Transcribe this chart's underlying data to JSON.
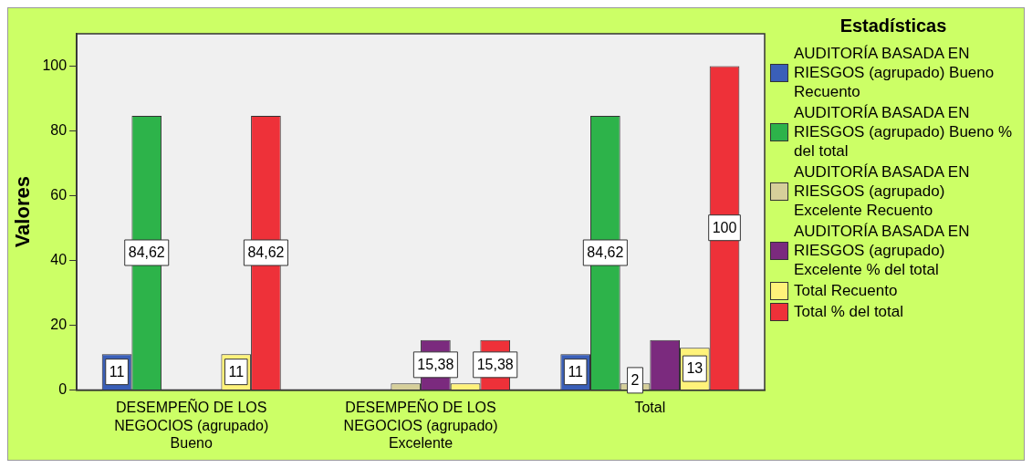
{
  "chart_data": {
    "type": "bar",
    "ylabel": "Valores",
    "legend_title": "Estadísticas",
    "legend": "right",
    "categories": [
      "DESEMPEÑO DE LOS NEGOCIOS (agrupado) Bueno",
      "DESEMPEÑO DE LOS NEGOCIOS (agrupado) Excelente",
      "Total"
    ],
    "ylim": [
      0,
      110
    ],
    "yticks": [
      0,
      20,
      40,
      60,
      80,
      100
    ],
    "series": [
      {
        "name": "AUDITORÍA BASADA EN RIESGOS (agrupado) Bueno Recuento",
        "color": "#3a5fb8",
        "values": [
          11,
          0,
          11
        ],
        "value_labels": [
          "11",
          null,
          "11"
        ]
      },
      {
        "name": "AUDITORÍA BASADA EN RIESGOS (agrupado) Bueno % del total",
        "color": "#2db34a",
        "values": [
          84.62,
          0,
          84.62
        ],
        "value_labels": [
          "84,62",
          null,
          "84,62"
        ]
      },
      {
        "name": "AUDITORÍA BASADA EN RIESGOS (agrupado) Excelente Recuento",
        "color": "#d6cf9a",
        "values": [
          0,
          2,
          2
        ],
        "value_labels": [
          null,
          null,
          "2"
        ]
      },
      {
        "name": "AUDITORÍA BASADA EN RIESGOS (agrupado) Excelente % del total",
        "color": "#7b2a7e",
        "values": [
          0,
          15.38,
          15.38
        ],
        "value_labels": [
          null,
          "15,38",
          null
        ]
      },
      {
        "name": "Total  Recuento",
        "color": "#fff27a",
        "values": [
          11,
          2,
          13
        ],
        "value_labels": [
          "11",
          null,
          "13"
        ]
      },
      {
        "name": "Total  % del total",
        "color": "#ee3139",
        "values": [
          84.62,
          15.38,
          100
        ],
        "value_labels": [
          "84,62",
          "15,38",
          "100"
        ]
      }
    ]
  }
}
